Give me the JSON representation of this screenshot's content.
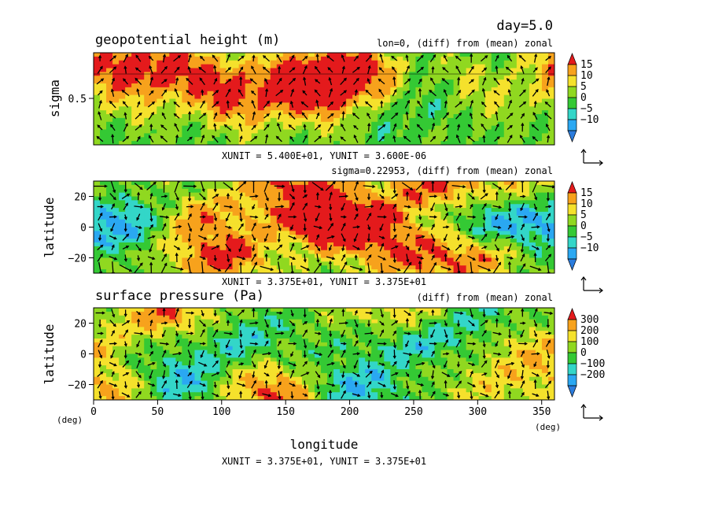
{
  "header": {
    "day": "day=5.0"
  },
  "colors": {
    "levels": [
      "#2b7cdd",
      "#2aa8f2",
      "#33d6c8",
      "#34c934",
      "#90d820",
      "#f5e12c",
      "#f7a21c",
      "#e41a1c"
    ],
    "arrow": "#000000"
  },
  "chart_data": [
    {
      "type": "heatmap",
      "title": "geopotential height (m)",
      "subtitle": "lon=0, (diff) from (mean) zonal",
      "ylabel": "sigma",
      "yticks": [
        "0.5"
      ],
      "xlim": [
        0,
        360
      ],
      "ylim": [
        1,
        0
      ],
      "colorbar_ticks": [
        "15",
        "10",
        "5",
        "0",
        "−5",
        "−10"
      ],
      "colorbar_range": [
        -15,
        15
      ],
      "vector_unit": "XUNIT = 5.400E+01, YUNIT = 3.600E-06",
      "features": [
        {
          "lon": 30,
          "lat": 0.1,
          "value": 13
        },
        {
          "lon": 60,
          "lat": 0.25,
          "value": 8
        },
        {
          "lon": 100,
          "lat": 0.3,
          "value": 7
        },
        {
          "lon": 120,
          "lat": 0.5,
          "value": 10
        },
        {
          "lon": 190,
          "lat": 0.2,
          "value": 15
        },
        {
          "lon": 170,
          "lat": 0.4,
          "value": 12
        },
        {
          "lon": 220,
          "lat": 0.4,
          "value": 8
        },
        {
          "lon": 250,
          "lat": 0.55,
          "value": -9
        },
        {
          "lon": 295,
          "lat": 0.5,
          "value": 9
        },
        {
          "lon": 320,
          "lat": 0.55,
          "value": -6
        },
        {
          "lon": 350,
          "lat": 0.45,
          "value": 7
        }
      ]
    },
    {
      "type": "heatmap",
      "title": "",
      "subtitle": "sigma=0.22953, (diff) from (mean) zonal",
      "ylabel": "latitude",
      "yticks": [
        "20",
        "0",
        "−20"
      ],
      "xlim": [
        0,
        360
      ],
      "ylim": [
        -30,
        30
      ],
      "colorbar_ticks": [
        "15",
        "10",
        "5",
        "0",
        "−5",
        "−10"
      ],
      "colorbar_range": [
        -15,
        15
      ],
      "vector_unit": "XUNIT = 3.375E+01, YUNIT = 3.375E+01",
      "features": [
        {
          "lon": 160,
          "lat": 27,
          "value": 14
        },
        {
          "lon": 185,
          "lat": 5,
          "value": 15
        },
        {
          "lon": 210,
          "lat": 0,
          "value": 13
        },
        {
          "lon": 270,
          "lat": 27,
          "value": 14
        },
        {
          "lon": 80,
          "lat": 5,
          "value": 10
        },
        {
          "lon": 100,
          "lat": -20,
          "value": 14
        },
        {
          "lon": 240,
          "lat": -20,
          "value": 9
        },
        {
          "lon": 290,
          "lat": -20,
          "value": 12
        },
        {
          "lon": 320,
          "lat": 5,
          "value": -12
        },
        {
          "lon": 340,
          "lat": 20,
          "value": 8
        },
        {
          "lon": 20,
          "lat": 5,
          "value": -12
        },
        {
          "lon": 130,
          "lat": 10,
          "value": 3
        }
      ]
    },
    {
      "type": "heatmap",
      "title": "surface pressure (Pa)",
      "subtitle": "(diff) from (mean) zonal",
      "ylabel": "latitude",
      "xlabel": "longitude",
      "xunit": "(deg)",
      "yunit": "(deg)",
      "xticks": [
        "0",
        "50",
        "100",
        "150",
        "200",
        "250",
        "300",
        "350"
      ],
      "yticks": [
        "20",
        "0",
        "−20"
      ],
      "xlim": [
        0,
        360
      ],
      "ylim": [
        -30,
        30
      ],
      "colorbar_ticks": [
        "300",
        "200",
        "100",
        "0",
        "−100",
        "−200"
      ],
      "colorbar_range": [
        -300,
        300
      ],
      "vector_unit": "XUNIT = 3.375E+01, YUNIT = 3.375E+01",
      "features": [
        {
          "lon": 60,
          "lat": 27,
          "value": 250
        },
        {
          "lon": 140,
          "lat": -25,
          "value": 300
        },
        {
          "lon": 20,
          "lat": -22,
          "value": 220
        },
        {
          "lon": 240,
          "lat": 27,
          "value": 200
        },
        {
          "lon": 340,
          "lat": 5,
          "value": 160
        },
        {
          "lon": 300,
          "lat": -20,
          "value": 100
        },
        {
          "lon": 60,
          "lat": -18,
          "value": -220
        },
        {
          "lon": 200,
          "lat": -22,
          "value": -180
        },
        {
          "lon": 110,
          "lat": 10,
          "value": -120
        },
        {
          "lon": 250,
          "lat": 10,
          "value": -150
        },
        {
          "lon": 300,
          "lat": 20,
          "value": -100
        }
      ]
    }
  ]
}
